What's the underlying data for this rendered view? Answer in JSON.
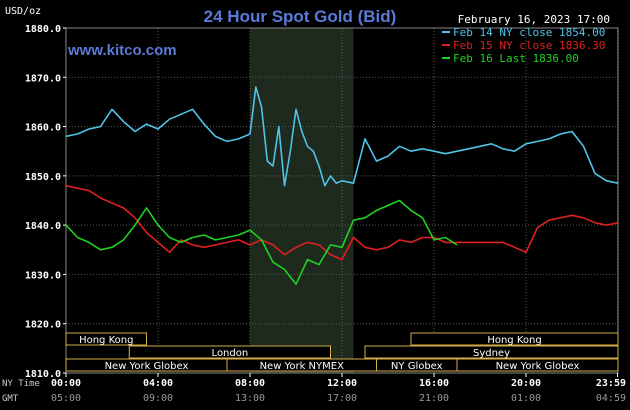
{
  "chart_data": {
    "type": "line",
    "title": "24 Hour Spot Gold (Bid)",
    "website": "www.kitco.com",
    "date_label": "February 16, 2023 17:00",
    "ylabel": "USD/oz",
    "ylim": [
      1810,
      1880
    ],
    "yticks": [
      "1880.0",
      "1870.0",
      "1860.0",
      "1850.0",
      "1840.0",
      "1830.0",
      "1820.0",
      "1810.0"
    ],
    "ytick_values": [
      1880,
      1870,
      1860,
      1850,
      1840,
      1830,
      1820,
      1810
    ],
    "xlim": [
      0,
      24
    ],
    "x_axis_rows": [
      {
        "label": "NY Time",
        "ticks": [
          "00:00",
          "04:00",
          "08:00",
          "12:00",
          "16:00",
          "20:00",
          "23:59"
        ]
      },
      {
        "label": "GMT",
        "ticks": [
          "05:00",
          "09:00",
          "13:00",
          "17:00",
          "21:00",
          "01:00",
          "04:59"
        ]
      }
    ],
    "xtick_hours": [
      0,
      4,
      8,
      12,
      16,
      20,
      23.98
    ],
    "grid": true,
    "legend_position": "top-right",
    "shaded_region_hours": [
      8,
      12.5
    ],
    "market_sessions": [
      {
        "name": "Hong Kong",
        "start": 0,
        "end": 3.5,
        "row": 0
      },
      {
        "name": "Hong Kong",
        "start": 15,
        "end": 24,
        "row": 0
      },
      {
        "name": "London",
        "start": 2.75,
        "end": 11.5,
        "row": 1
      },
      {
        "name": "Sydney",
        "start": 13,
        "end": 24,
        "row": 1
      },
      {
        "name": "New York Globex",
        "start": 0,
        "end": 7,
        "row": 2
      },
      {
        "name": "New York NYMEX",
        "start": 7,
        "end": 13.5,
        "row": 2
      },
      {
        "name": "NY Globex",
        "start": 13.5,
        "end": 17,
        "row": 2
      },
      {
        "name": "New York Globex",
        "start": 17,
        "end": 24,
        "row": 2
      }
    ],
    "series": [
      {
        "name": "Feb 14 NY close 1854.00",
        "color": "#4fc3e8",
        "x": [
          0,
          0.5,
          1,
          1.5,
          2,
          2.5,
          3,
          3.5,
          4,
          4.5,
          5,
          5.5,
          6,
          6.5,
          7,
          7.5,
          8,
          8.25,
          8.5,
          8.75,
          9,
          9.25,
          9.5,
          9.75,
          10,
          10.25,
          10.5,
          10.75,
          11,
          11.25,
          11.5,
          11.75,
          12,
          12.5,
          13,
          13.5,
          14,
          14.5,
          15,
          15.5,
          16,
          16.5,
          17,
          17.5,
          18,
          18.5,
          19,
          19.5,
          20,
          20.5,
          21,
          21.5,
          22,
          22.5,
          23,
          23.5,
          24
        ],
        "values": [
          1858.0,
          1858.5,
          1859.5,
          1860.0,
          1863.5,
          1861.0,
          1859.0,
          1860.5,
          1859.5,
          1861.5,
          1862.5,
          1863.5,
          1860.5,
          1858.0,
          1857.0,
          1857.5,
          1858.5,
          1868.0,
          1864.0,
          1853.0,
          1852.0,
          1860.0,
          1848.0,
          1855.0,
          1863.5,
          1859.0,
          1856.0,
          1855.0,
          1852.0,
          1848.0,
          1850.0,
          1848.5,
          1849.0,
          1848.5,
          1857.5,
          1853.0,
          1854.0,
          1856.0,
          1855.0,
          1855.5,
          1855.0,
          1854.5,
          1855.0,
          1855.5,
          1856.0,
          1856.5,
          1855.5,
          1855.0,
          1856.5,
          1857.0,
          1857.5,
          1858.5,
          1859.0,
          1856.0,
          1850.5,
          1849.0,
          1848.5
        ]
      },
      {
        "name": "Feb 15 NY close 1836.30",
        "color": "#e02020",
        "x": [
          0,
          0.5,
          1,
          1.5,
          2,
          2.5,
          3,
          3.5,
          4,
          4.5,
          5,
          5.5,
          6,
          6.5,
          7,
          7.5,
          8,
          8.5,
          9,
          9.5,
          10,
          10.5,
          11,
          11.5,
          12,
          12.5,
          13,
          13.5,
          14,
          14.5,
          15,
          15.5,
          16,
          16.5,
          17,
          17.5,
          18,
          18.5,
          19,
          19.5,
          20,
          20.5,
          21,
          21.5,
          22,
          22.5,
          23,
          23.5,
          24
        ],
        "values": [
          1848.0,
          1847.5,
          1847.0,
          1845.5,
          1844.5,
          1843.5,
          1841.5,
          1838.5,
          1836.5,
          1834.5,
          1837.0,
          1836.0,
          1835.5,
          1836.0,
          1836.5,
          1837.0,
          1836.0,
          1837.0,
          1836.0,
          1834.0,
          1835.5,
          1836.5,
          1836.0,
          1834.0,
          1833.0,
          1837.5,
          1835.5,
          1835.0,
          1835.5,
          1837.0,
          1836.5,
          1837.5,
          1837.5,
          1836.5,
          1836.5,
          1836.5,
          1836.5,
          1836.5,
          1836.5,
          1835.5,
          1834.5,
          1839.5,
          1841.0,
          1841.5,
          1842.0,
          1841.5,
          1840.5,
          1840.0,
          1840.5
        ]
      },
      {
        "name": "Feb 16 Last 1836.00",
        "color": "#20d020",
        "x": [
          0,
          0.5,
          1,
          1.5,
          2,
          2.5,
          3,
          3.5,
          4,
          4.5,
          5,
          5.5,
          6,
          6.5,
          7,
          7.5,
          8,
          8.5,
          9,
          9.5,
          10,
          10.5,
          11,
          11.5,
          12,
          12.5,
          13,
          13.5,
          14,
          14.5,
          15,
          15.5,
          16,
          16.5,
          17
        ],
        "values": [
          1840.0,
          1837.5,
          1836.5,
          1835.0,
          1835.5,
          1837.0,
          1840.0,
          1843.5,
          1840.0,
          1837.5,
          1836.5,
          1837.5,
          1838.0,
          1837.0,
          1837.5,
          1838.0,
          1839.0,
          1837.0,
          1832.5,
          1831.0,
          1828.0,
          1833.0,
          1832.0,
          1836.0,
          1835.5,
          1841.0,
          1841.5,
          1843.0,
          1844.0,
          1845.0,
          1843.0,
          1841.5,
          1837.0,
          1837.5,
          1836.0
        ]
      }
    ]
  },
  "colors": {
    "background": "#000000",
    "plot_background": "#000000",
    "shaded_region": "#1d2a1d",
    "grid": "#5a5a5a",
    "axis_text": "#ffffff",
    "title": "#5a7ad8",
    "website": "#5a7ad8",
    "session_box_border": "#d4b048",
    "session_box_text": "#ffffff"
  }
}
